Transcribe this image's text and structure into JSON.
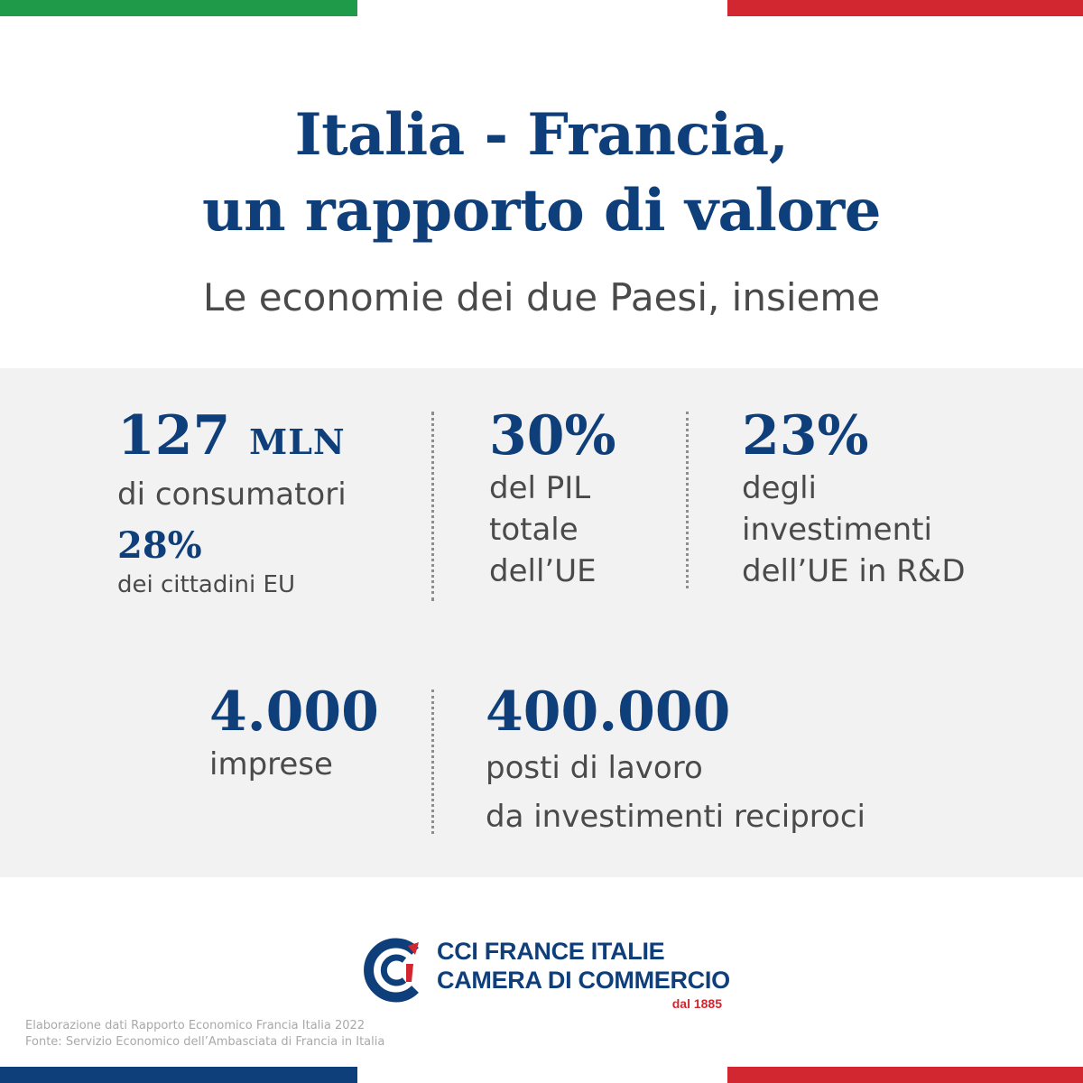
{
  "colors": {
    "flag_green": "#1e9a48",
    "flag_red": "#d22630",
    "brand_blue": "#0f3f7a",
    "panel_gray": "#f2f2f2",
    "text_gray": "#4a4a4a"
  },
  "header": {
    "title_line1": "Italia - Francia,",
    "title_line2": "un rapporto di valore",
    "subtitle": "Le economie dei due Paesi, insieme"
  },
  "stats": {
    "consumers": {
      "number": "127",
      "unit": "MLN",
      "label": "di consumatori"
    },
    "citizens": {
      "number": "28%",
      "label": "dei cittadini EU"
    },
    "gdp": {
      "number": "30%",
      "label_line1": "del PIL",
      "label_line2": "totale",
      "label_line3": "dell’UE"
    },
    "investments": {
      "number": "23%",
      "label_line1": "degli",
      "label_line2": "investimenti",
      "label_line3": "dell’UE in R&D"
    },
    "companies": {
      "number": "4.000",
      "label": "imprese"
    },
    "jobs": {
      "number": "400.000",
      "label_line1": "posti di lavoro",
      "label_line2": "da investimenti reciproci"
    }
  },
  "logo": {
    "icon": "cci-logo-icon",
    "line1": "CCI FRANCE ITALIE",
    "line2": "CAMERA DI COMMERCIO",
    "since": "dal 1885"
  },
  "footnote": {
    "line1": "Elaborazione dati Rapporto Economico Francia Italia 2022",
    "line2": "Fonte: Servizio Economico dell’Ambasciata di Francia in Italia"
  }
}
